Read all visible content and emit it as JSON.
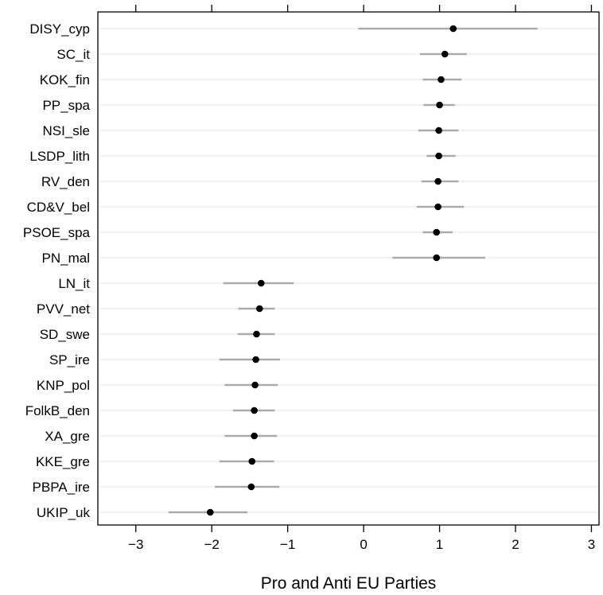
{
  "chart_data": {
    "type": "scatter",
    "subtype": "dot-plot-with-intervals",
    "xlabel": "Pro and Anti EU Parties",
    "xlim": [
      -3.5,
      3.1
    ],
    "xticks": [
      -3,
      -2,
      -1,
      0,
      1,
      2,
      3
    ],
    "xtick_labels": [
      "−3",
      "−2",
      "−1",
      "0",
      "1",
      "2",
      "3"
    ],
    "grid": "horizontal",
    "legend": "none",
    "colors": {
      "point": "#000000",
      "interval": "#aaaaaa",
      "grid": "#e6e6e6",
      "axis": "#000000"
    },
    "categories": [
      "DISY_cyp",
      "SC_it",
      "KOK_fin",
      "PP_spa",
      "NSI_sle",
      "LSDP_lith",
      "RV_den",
      "CD&V_bel",
      "PSOE_spa",
      "PN_mal",
      "LN_it",
      "PVV_net",
      "SD_swe",
      "SP_ire",
      "KNP_pol",
      "FolkB_den",
      "XA_gre",
      "KKE_gre",
      "PBPA_ire",
      "UKIP_uk"
    ],
    "values": [
      1.18,
      1.07,
      1.02,
      1.0,
      0.99,
      0.99,
      0.98,
      0.98,
      0.96,
      0.96,
      -1.35,
      -1.37,
      -1.41,
      -1.42,
      -1.43,
      -1.44,
      -1.44,
      -1.47,
      -1.48,
      -2.02
    ],
    "lower": [
      -0.07,
      0.74,
      0.78,
      0.79,
      0.72,
      0.83,
      0.76,
      0.7,
      0.78,
      0.38,
      -1.85,
      -1.65,
      -1.66,
      -1.9,
      -1.83,
      -1.72,
      -1.83,
      -1.9,
      -1.96,
      -2.57
    ],
    "upper": [
      2.29,
      1.36,
      1.29,
      1.2,
      1.25,
      1.21,
      1.25,
      1.32,
      1.17,
      1.6,
      -0.92,
      -1.17,
      -1.17,
      -1.1,
      -1.13,
      -1.17,
      -1.14,
      -1.18,
      -1.11,
      -1.53
    ]
  }
}
